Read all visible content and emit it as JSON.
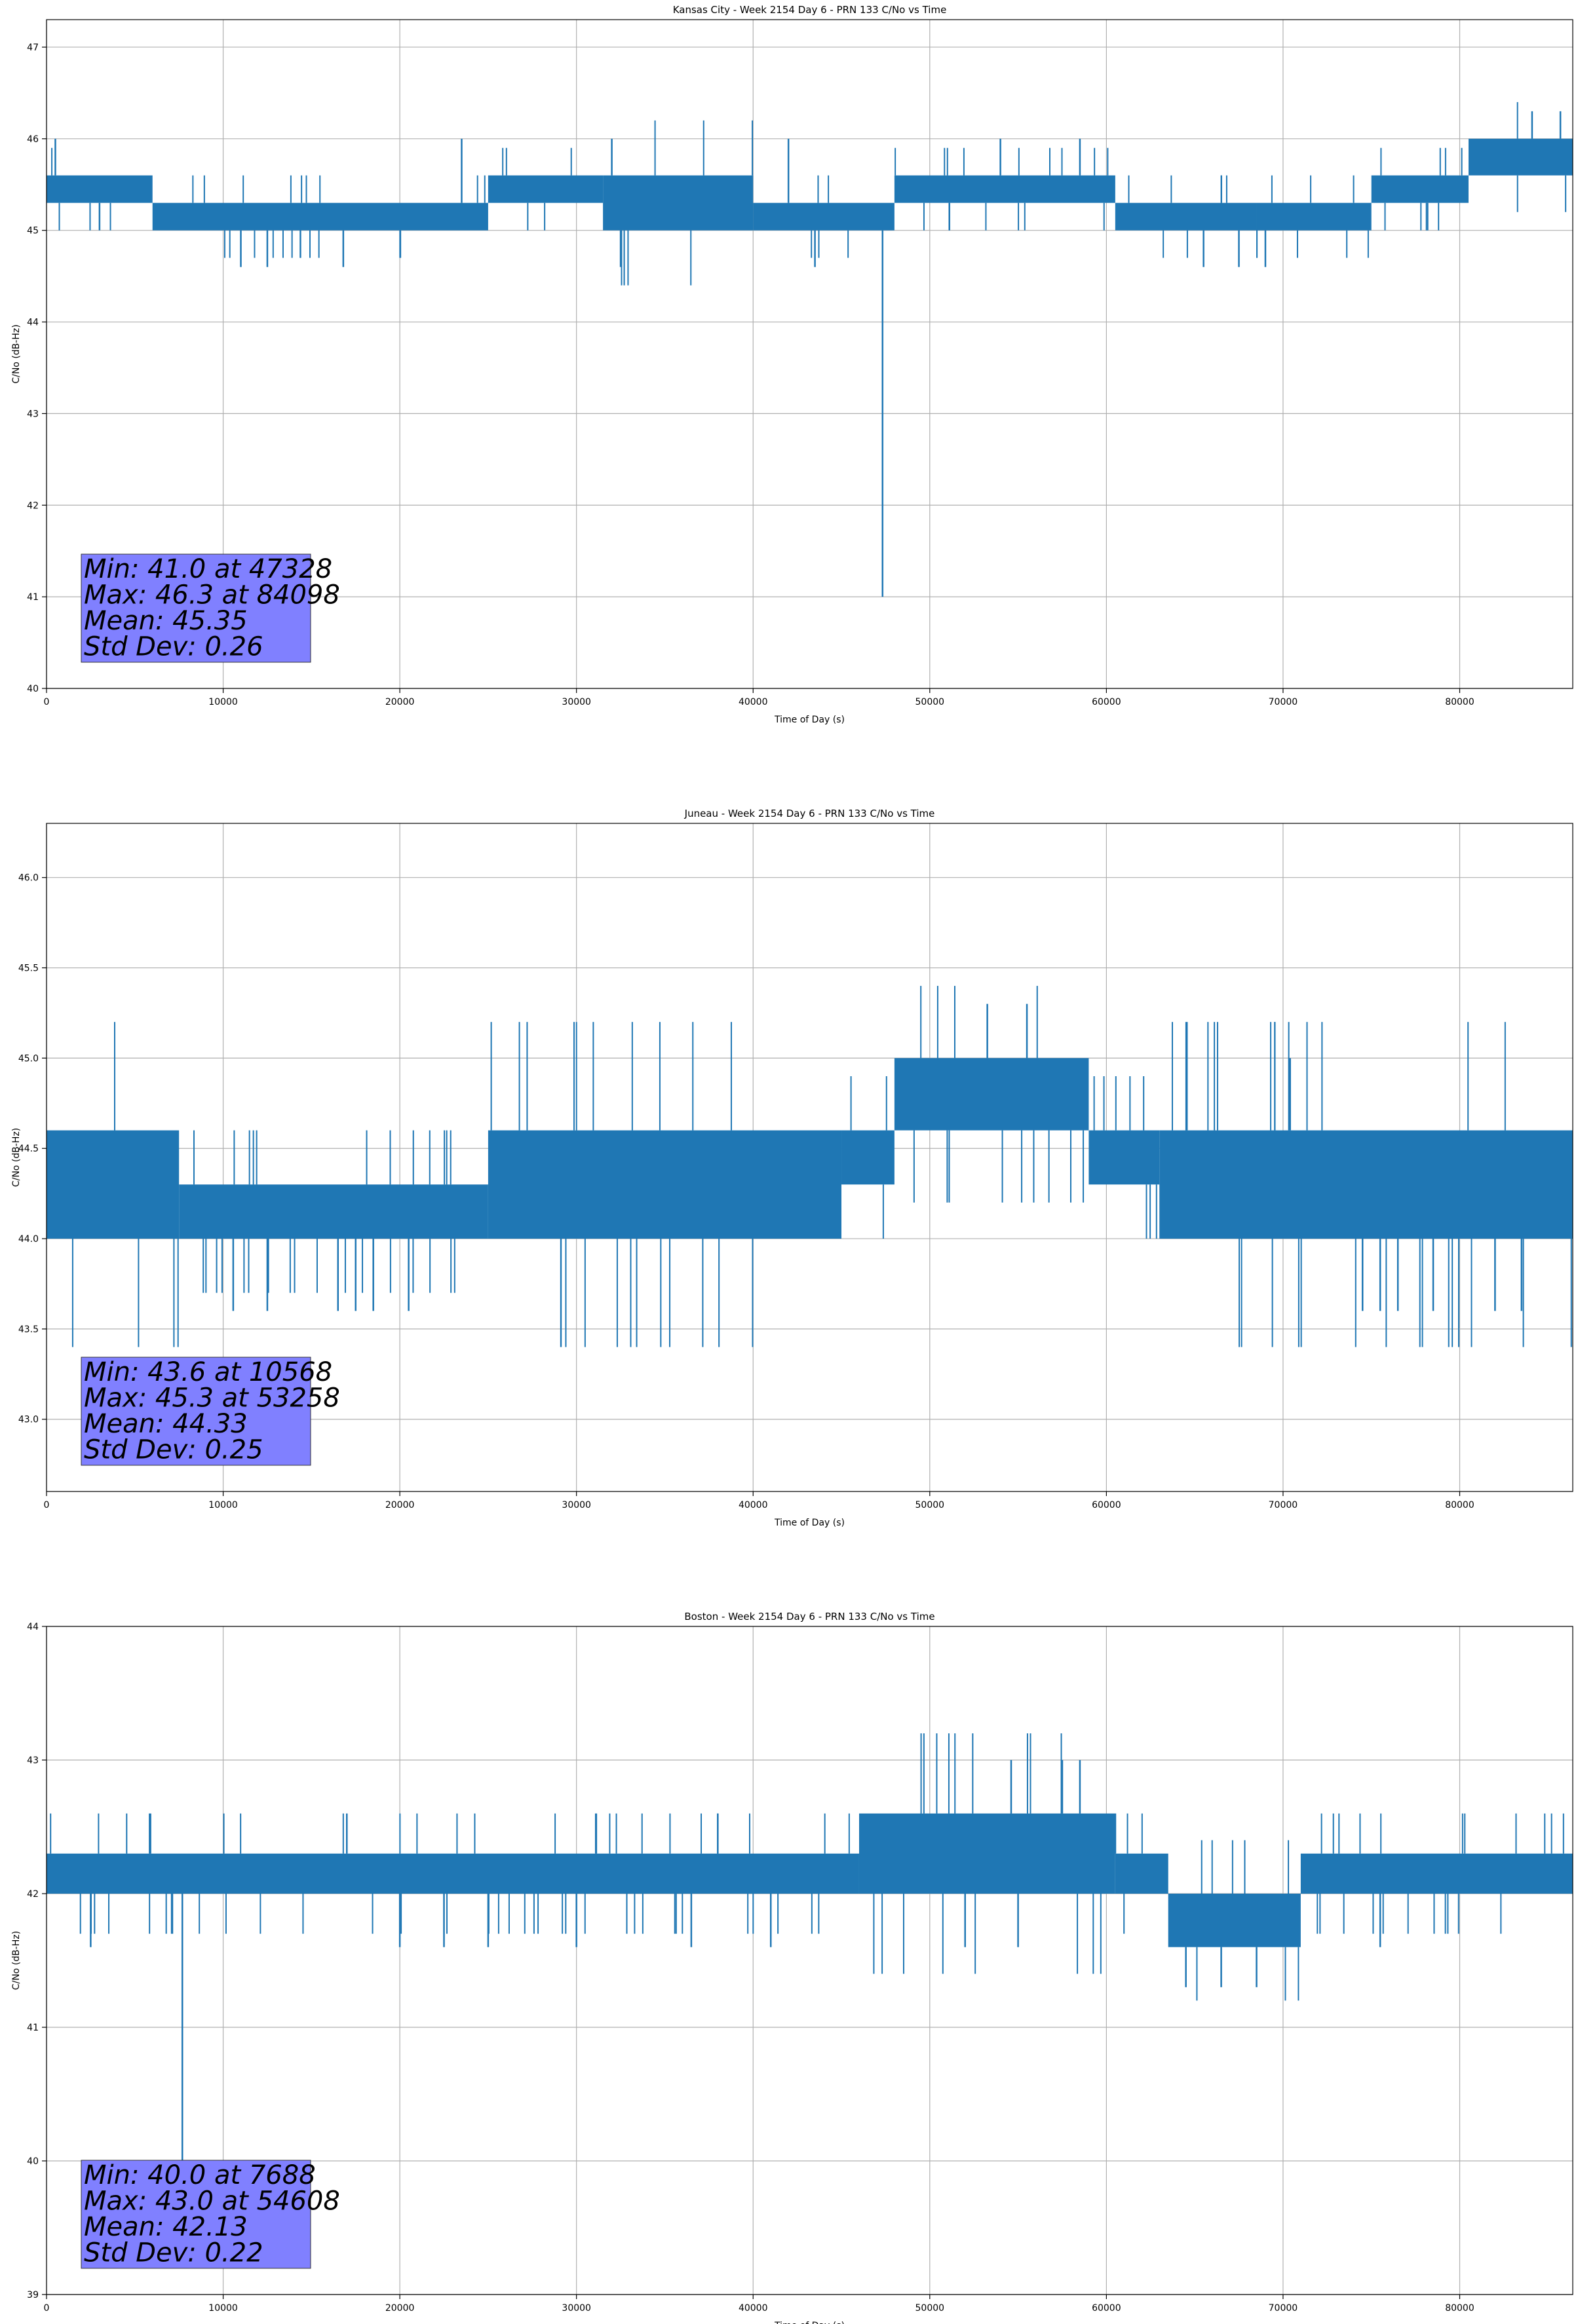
{
  "chart_data": [
    {
      "type": "line",
      "title": "Kansas City - Week 2154 Day 6 - PRN 133 C/No vs Time",
      "xlabel": "Time of Day (s)",
      "ylabel": "C/No (dB-Hz)",
      "xlim": [
        0,
        86400
      ],
      "ylim": [
        40,
        47.3
      ],
      "xticks": [
        0,
        10000,
        20000,
        30000,
        40000,
        50000,
        60000,
        70000,
        80000
      ],
      "yticks": [
        40,
        41,
        42,
        43,
        44,
        45,
        46,
        47
      ],
      "ytick_labels": [
        "40",
        "41",
        "42",
        "43",
        "44",
        "45",
        "46",
        "47"
      ],
      "grid": true,
      "color": "#1f77b4",
      "stats": [
        "Min: 41.0 at 47328",
        "Max: 46.3 at 84098",
        "Mean: 45.35",
        "Std Dev: 0.26"
      ],
      "series": [
        {
          "segments": [
            {
              "x": [
                0,
                6000
              ],
              "lo": 45.3,
              "hi": 45.6
            },
            {
              "x": [
                6000,
                25000
              ],
              "lo": 45.0,
              "hi": 45.3
            },
            {
              "x": [
                25000,
                31500
              ],
              "lo": 45.3,
              "hi": 45.6
            },
            {
              "x": [
                31500,
                40000
              ],
              "lo": 45.0,
              "hi": 45.6
            },
            {
              "x": [
                40000,
                48000
              ],
              "lo": 45.0,
              "hi": 45.3
            },
            {
              "x": [
                48000,
                60500
              ],
              "lo": 45.3,
              "hi": 45.6
            },
            {
              "x": [
                60500,
                68500
              ],
              "lo": 45.0,
              "hi": 45.3
            },
            {
              "x": [
                68500,
                75000
              ],
              "lo": 45.0,
              "hi": 45.3
            },
            {
              "x": [
                75000,
                80500
              ],
              "lo": 45.3,
              "hi": 45.6
            },
            {
              "x": [
                80500,
                86400
              ],
              "lo": 45.6,
              "hi": 46.0
            }
          ],
          "spikes": [
            {
              "x": 47328,
              "y": 41.0
            },
            {
              "x": 84098,
              "y": 46.3
            },
            {
              "x": 85700,
              "y": 46.3
            },
            {
              "x": 500,
              "y": 46.0
            },
            {
              "x": 23500,
              "y": 46.0
            },
            {
              "x": 32000,
              "y": 46.0
            },
            {
              "x": 42000,
              "y": 46.0
            },
            {
              "x": 54000,
              "y": 46.0
            },
            {
              "x": 58500,
              "y": 46.0
            },
            {
              "x": 11000,
              "y": 44.6
            },
            {
              "x": 12500,
              "y": 44.6
            },
            {
              "x": 16800,
              "y": 44.6
            },
            {
              "x": 32500,
              "y": 44.6
            },
            {
              "x": 43500,
              "y": 44.6
            },
            {
              "x": 65500,
              "y": 44.6
            },
            {
              "x": 67500,
              "y": 44.6
            },
            {
              "x": 69000,
              "y": 44.6
            },
            {
              "x": 3000,
              "y": 45.0
            },
            {
              "x": 73000,
              "y": 45.3
            }
          ]
        }
      ]
    },
    {
      "type": "line",
      "title": "Juneau - Week 2154 Day 6 - PRN 133 C/No vs Time",
      "xlabel": "Time of Day (s)",
      "ylabel": "C/No (dB-Hz)",
      "xlim": [
        0,
        86400
      ],
      "ylim": [
        42.6,
        46.3
      ],
      "xticks": [
        0,
        10000,
        20000,
        30000,
        40000,
        50000,
        60000,
        70000,
        80000
      ],
      "yticks": [
        43.0,
        43.5,
        44.0,
        44.5,
        45.0,
        45.5,
        46.0
      ],
      "ytick_labels": [
        "43.0",
        "43.5",
        "44.0",
        "44.5",
        "45.0",
        "45.5",
        "46.0"
      ],
      "grid": true,
      "color": "#1f77b4",
      "stats": [
        "Min: 43.6 at 10568",
        "Max: 45.3 at 53258",
        "Mean: 44.33",
        "Std Dev: 0.25"
      ],
      "series": [
        {
          "segments": [
            {
              "x": [
                0,
                7500
              ],
              "lo": 44.0,
              "hi": 44.6
            },
            {
              "x": [
                7500,
                25000
              ],
              "lo": 44.0,
              "hi": 44.3
            },
            {
              "x": [
                25000,
                45000
              ],
              "lo": 44.0,
              "hi": 44.6
            },
            {
              "x": [
                45000,
                48000
              ],
              "lo": 44.3,
              "hi": 44.6
            },
            {
              "x": [
                48000,
                59000
              ],
              "lo": 44.6,
              "hi": 45.0
            },
            {
              "x": [
                59000,
                63000
              ],
              "lo": 44.3,
              "hi": 44.6
            },
            {
              "x": [
                63000,
                86400
              ],
              "lo": 44.0,
              "hi": 44.6
            }
          ],
          "spikes": [
            {
              "x": 10568,
              "y": 43.6
            },
            {
              "x": 12500,
              "y": 43.6
            },
            {
              "x": 16500,
              "y": 43.6
            },
            {
              "x": 17500,
              "y": 43.6
            },
            {
              "x": 18500,
              "y": 43.6
            },
            {
              "x": 20500,
              "y": 43.6
            },
            {
              "x": 53258,
              "y": 45.3
            },
            {
              "x": 55500,
              "y": 45.3
            },
            {
              "x": 70400,
              "y": 45.0
            },
            {
              "x": 74500,
              "y": 43.6
            },
            {
              "x": 75500,
              "y": 43.6
            },
            {
              "x": 76500,
              "y": 43.6
            },
            {
              "x": 78500,
              "y": 43.6
            },
            {
              "x": 82000,
              "y": 43.6
            },
            {
              "x": 83500,
              "y": 43.6
            }
          ]
        }
      ]
    },
    {
      "type": "line",
      "title": "Boston - Week 2154 Day 6 - PRN 133 C/No vs Time",
      "xlabel": "Time of Day (s)",
      "ylabel": "C/No (dB-Hz)",
      "xlim": [
        0,
        86400
      ],
      "ylim": [
        39,
        44
      ],
      "xticks": [
        0,
        10000,
        20000,
        30000,
        40000,
        50000,
        60000,
        70000,
        80000
      ],
      "yticks": [
        39,
        40,
        41,
        42,
        43,
        44
      ],
      "ytick_labels": [
        "39",
        "40",
        "41",
        "42",
        "43",
        "44"
      ],
      "grid": true,
      "color": "#1f77b4",
      "stats": [
        "Min: 40.0 at 7688",
        "Max: 43.0 at 54608",
        "Mean: 42.13",
        "Std Dev: 0.22"
      ],
      "series": [
        {
          "segments": [
            {
              "x": [
                0,
                46000
              ],
              "lo": 42.0,
              "hi": 42.3
            },
            {
              "x": [
                46000,
                60500
              ],
              "lo": 42.0,
              "hi": 42.6
            },
            {
              "x": [
                60500,
                63500
              ],
              "lo": 42.0,
              "hi": 42.3
            },
            {
              "x": [
                63500,
                71000
              ],
              "lo": 41.6,
              "hi": 42.0
            },
            {
              "x": [
                71000,
                86400
              ],
              "lo": 42.0,
              "hi": 42.3
            }
          ],
          "spikes": [
            {
              "x": 7688,
              "y": 40.0
            },
            {
              "x": 2500,
              "y": 41.6
            },
            {
              "x": 54608,
              "y": 43.0
            },
            {
              "x": 57500,
              "y": 43.0
            },
            {
              "x": 58500,
              "y": 43.0
            },
            {
              "x": 17000,
              "y": 42.6
            },
            {
              "x": 38000,
              "y": 42.6
            },
            {
              "x": 46500,
              "y": 42.6
            },
            {
              "x": 64500,
              "y": 41.3
            },
            {
              "x": 66500,
              "y": 41.3
            },
            {
              "x": 68500,
              "y": 41.3
            },
            {
              "x": 20000,
              "y": 41.6
            },
            {
              "x": 22500,
              "y": 41.6
            },
            {
              "x": 25000,
              "y": 41.6
            },
            {
              "x": 30000,
              "y": 41.6
            },
            {
              "x": 36500,
              "y": 41.6
            },
            {
              "x": 41000,
              "y": 41.6
            },
            {
              "x": 52000,
              "y": 41.6
            },
            {
              "x": 55000,
              "y": 41.6
            },
            {
              "x": 75500,
              "y": 41.6
            }
          ]
        }
      ]
    }
  ]
}
